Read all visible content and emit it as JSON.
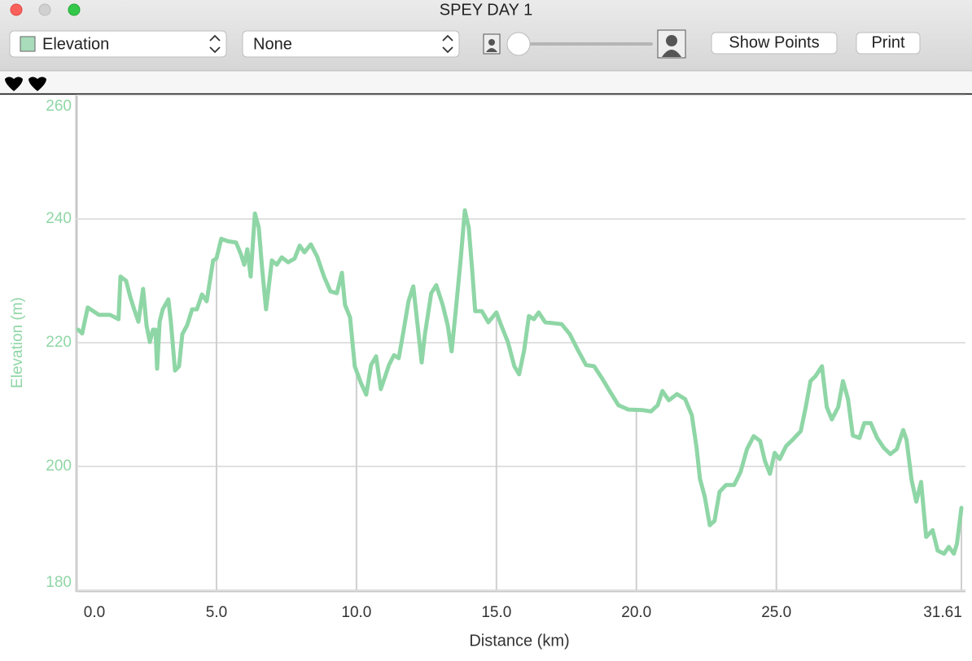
{
  "window": {
    "title": "SPEY DAY 1"
  },
  "toolbar": {
    "secondary_menu": "None",
    "show_points_button": "Show Points",
    "print_button": "Print"
  },
  "chart_data": {
    "type": "line",
    "x_label": "Distance (km)",
    "y_label": "Elevation (m)",
    "xlim": [
      0,
      31.61
    ],
    "xticks": [
      {
        "value": 0,
        "label": "0.0"
      },
      {
        "value": 5,
        "label": "5.0"
      },
      {
        "value": 10,
        "label": "10.0"
      },
      {
        "value": 15,
        "label": "15.0"
      },
      {
        "value": 20,
        "label": "20.0"
      },
      {
        "value": 25,
        "label": "25.0"
      },
      31.61
    ],
    "ylim": [
      180,
      260
    ],
    "yticks": [
      180,
      200,
      220,
      240,
      260
    ],
    "grid": true,
    "x": [
      0.06,
      0.2,
      0.4,
      0.8,
      1.2,
      1.5,
      1.57,
      1.77,
      1.92,
      2.06,
      2.21,
      2.38,
      2.5,
      2.62,
      2.73,
      2.82,
      2.88,
      2.97,
      3.08,
      3.28,
      3.37,
      3.52,
      3.66,
      3.78,
      3.95,
      4.13,
      4.3,
      4.48,
      4.65,
      4.88,
      5.0,
      5.17,
      5.41,
      5.7,
      5.87,
      5.99,
      6.1,
      6.22,
      6.37,
      6.51,
      6.63,
      6.77,
      6.98,
      7.15,
      7.33,
      7.56,
      7.79,
      7.97,
      8.14,
      8.37,
      8.6,
      8.84,
      9.07,
      9.3,
      9.48,
      9.59,
      9.77,
      9.94,
      10.15,
      10.35,
      10.52,
      10.7,
      10.87,
      11.05,
      11.16,
      11.34,
      11.51,
      11.69,
      11.86,
      12.03,
      12.21,
      12.33,
      12.44,
      12.67,
      12.85,
      13.08,
      13.26,
      13.4,
      13.55,
      13.72,
      13.87,
      14.01,
      14.13,
      14.24,
      14.48,
      14.71,
      15.0,
      15.17,
      15.41,
      15.64,
      15.81,
      15.99,
      16.16,
      16.34,
      16.51,
      16.74,
      17.33,
      17.62,
      17.91,
      18.2,
      18.49,
      18.78,
      19.07,
      19.36,
      19.71,
      20.23,
      20.52,
      20.76,
      20.93,
      21.16,
      21.45,
      21.74,
      21.98,
      22.15,
      22.27,
      22.44,
      22.62,
      22.79,
      22.97,
      23.2,
      23.49,
      23.72,
      23.95,
      24.19,
      24.42,
      24.59,
      24.77,
      24.94,
      25.12,
      25.35,
      25.58,
      25.87,
      26.05,
      26.22,
      26.4,
      26.63,
      26.8,
      26.98,
      27.21,
      27.38,
      27.56,
      27.73,
      27.97,
      28.14,
      28.37,
      28.6,
      28.84,
      29.07,
      29.3,
      29.53,
      29.65,
      29.83,
      30.0,
      30.17,
      30.35,
      30.58,
      30.76,
      30.99,
      31.16,
      31.34,
      31.45,
      31.61
    ],
    "series": [
      {
        "name": "Elevation",
        "color": "#8fd6a6",
        "values": [
          222.1,
          221.5,
          225.7,
          224.5,
          224.5,
          223.8,
          230.7,
          230,
          227.4,
          225.4,
          223.4,
          228.7,
          222.8,
          220.1,
          222.1,
          222.1,
          215.8,
          223.4,
          225.4,
          227,
          223.4,
          215.5,
          216.2,
          221.4,
          222.8,
          225.4,
          225.4,
          227.8,
          226.7,
          233.3,
          233.6,
          236.8,
          236.4,
          236.2,
          234.3,
          232.6,
          235.1,
          230.7,
          240.9,
          238.6,
          232,
          225.4,
          233.3,
          232.6,
          233.8,
          233,
          233.6,
          235.7,
          234.6,
          235.9,
          233.9,
          230.7,
          228.3,
          228,
          231.3,
          226.1,
          224.1,
          216.2,
          213.6,
          211.6,
          216.4,
          217.8,
          212.5,
          214.9,
          216.4,
          218,
          217.5,
          222.1,
          226.7,
          229.1,
          221.7,
          216.8,
          221.2,
          228,
          229.3,
          226.1,
          222.8,
          218.6,
          225.4,
          233.3,
          241.4,
          238.6,
          232,
          225.1,
          225.1,
          223.3,
          224.9,
          222.8,
          220.1,
          216.2,
          214.9,
          218.8,
          224.3,
          223.8,
          224.9,
          223.3,
          223,
          221.4,
          218.8,
          216.4,
          216.2,
          214.2,
          212,
          209.9,
          209.2,
          209.1,
          208.9,
          209.9,
          212.2,
          210.7,
          211.7,
          210.9,
          208.3,
          203,
          198,
          195.1,
          190.5,
          191.2,
          195.9,
          197,
          197,
          199.1,
          202.8,
          204.9,
          204.1,
          200.9,
          198.8,
          202.2,
          201.2,
          203.3,
          204.3,
          205.7,
          209.6,
          213.8,
          214.6,
          216.2,
          209.6,
          207.6,
          209.6,
          213.8,
          210.9,
          205,
          204.6,
          207,
          207,
          204.6,
          203,
          202,
          202.8,
          205.9,
          204.3,
          197.8,
          194.3,
          197.5,
          188.6,
          189.7,
          186.4,
          185.9,
          187,
          185.9,
          187.5,
          193.3
        ]
      }
    ]
  }
}
